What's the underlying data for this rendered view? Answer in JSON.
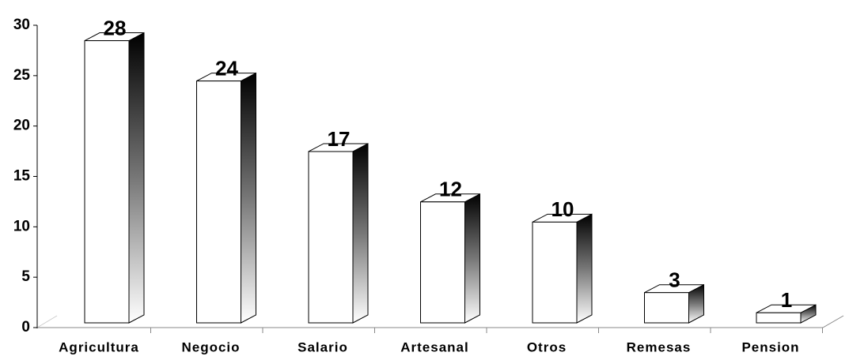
{
  "chart_data": {
    "type": "bar3d",
    "categories": [
      "Agricultura",
      "Negocio",
      "Salario",
      "Artesanal",
      "Otros",
      "Remesas",
      "Pension"
    ],
    "values": [
      28,
      24,
      17,
      12,
      10,
      3,
      1
    ],
    "color": "#ffffff",
    "ylim": [
      0,
      30
    ],
    "yticks": [
      0,
      5,
      10,
      15,
      20,
      25,
      30
    ]
  }
}
